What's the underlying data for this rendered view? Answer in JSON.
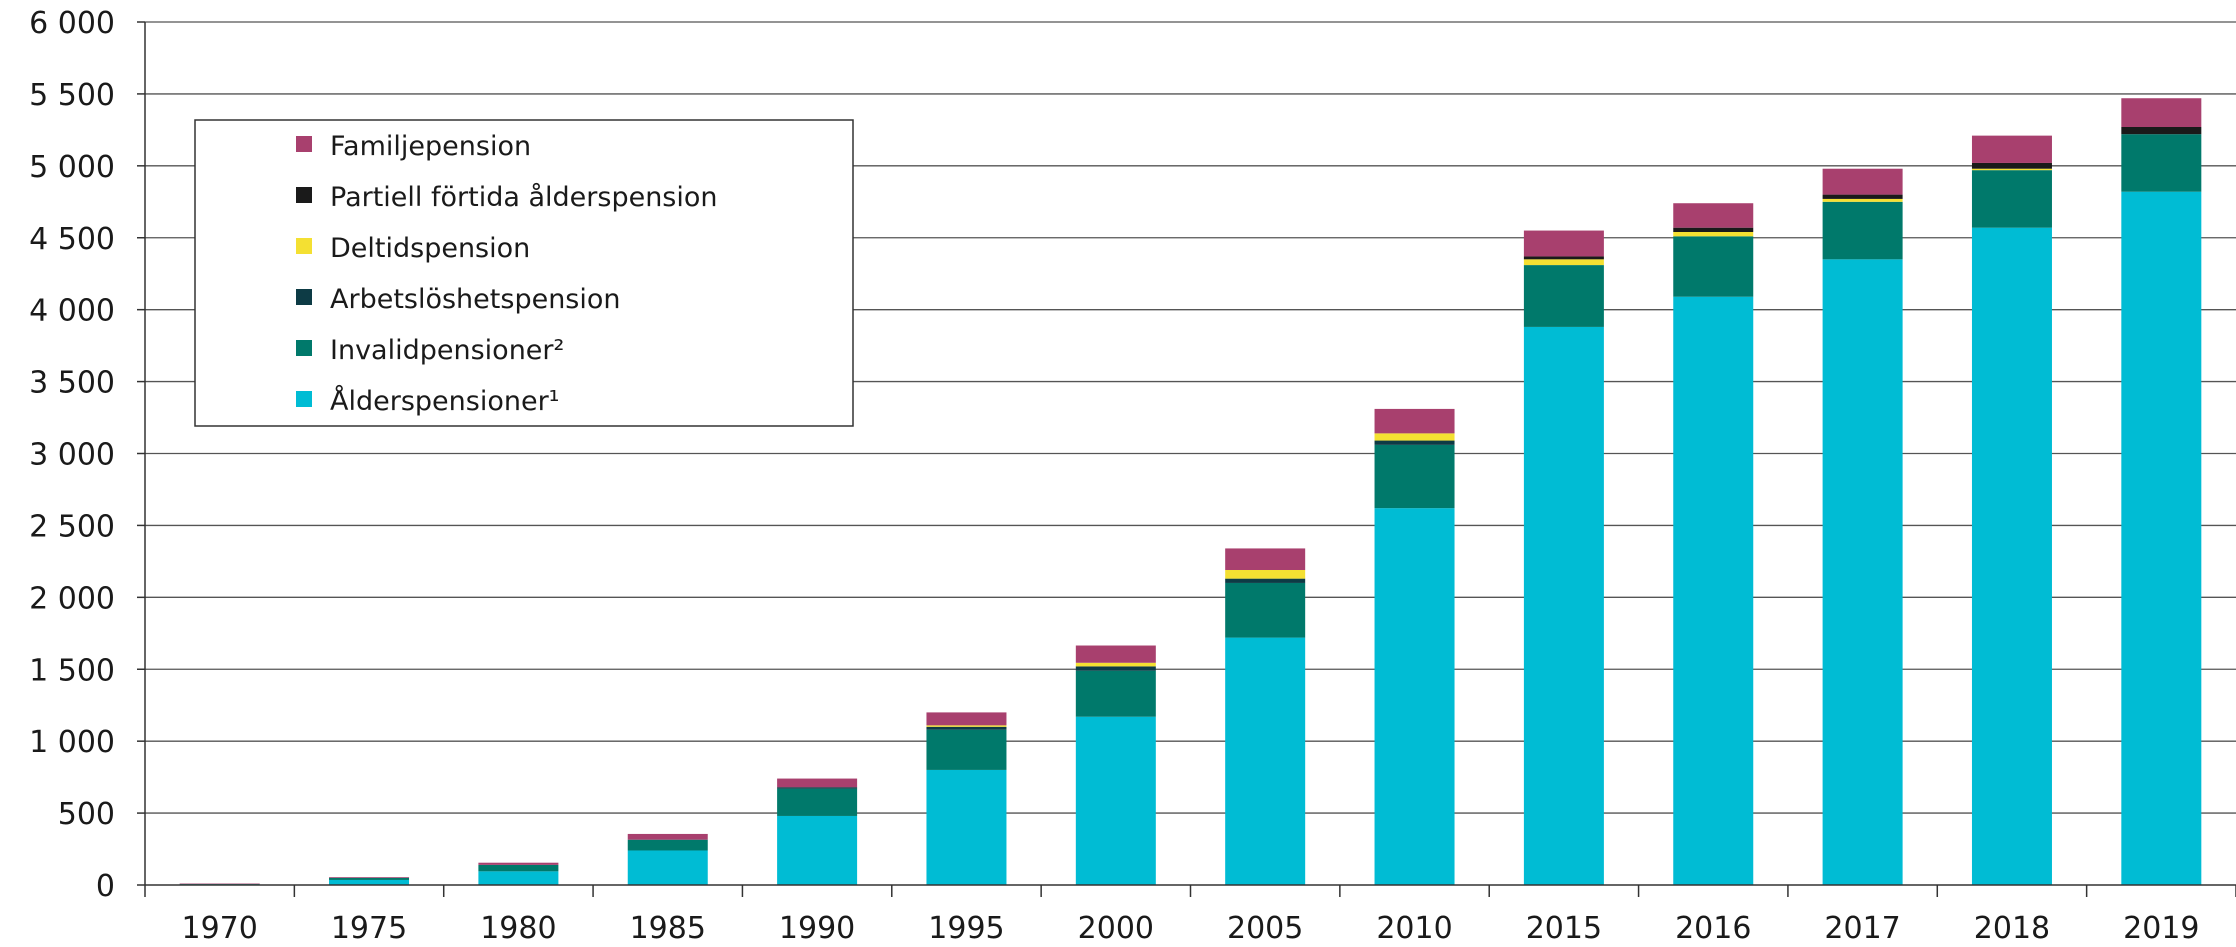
{
  "chart_data": {
    "type": "bar",
    "stacked": true,
    "categories": [
      "1970",
      "1975",
      "1980",
      "1985",
      "1990",
      "1995",
      "2000",
      "2005",
      "2010",
      "2015",
      "2016",
      "2017",
      "2018",
      "2019"
    ],
    "series": [
      {
        "name": "Ålderspensioner¹",
        "color": "#00BCD4",
        "values": [
          5,
          35,
          95,
          240,
          480,
          800,
          1170,
          1720,
          2620,
          3880,
          4090,
          4350,
          4570,
          4820
        ]
      },
      {
        "name": "Invalidpensioner²",
        "color": "#00796B",
        "values": [
          3,
          15,
          45,
          75,
          190,
          280,
          320,
          380,
          440,
          430,
          420,
          400,
          400,
          400
        ]
      },
      {
        "name": "Arbetslöshetspension",
        "color": "#0D3B45",
        "values": [
          0,
          0,
          0,
          0,
          10,
          20,
          30,
          30,
          30,
          0,
          0,
          0,
          0,
          0
        ]
      },
      {
        "name": "Deltidspension",
        "color": "#F4E032",
        "values": [
          0,
          0,
          0,
          0,
          0,
          10,
          25,
          60,
          50,
          40,
          30,
          20,
          10,
          0
        ]
      },
      {
        "name": "Partiell förtida ålderspension",
        "color": "#1A1A1A",
        "values": [
          0,
          0,
          0,
          0,
          0,
          0,
          0,
          0,
          0,
          20,
          30,
          30,
          40,
          50
        ]
      },
      {
        "name": "Familjepension",
        "color": "#A8406E",
        "values": [
          2,
          5,
          15,
          40,
          60,
          90,
          120,
          150,
          170,
          180,
          170,
          180,
          190,
          200
        ]
      }
    ],
    "ylim": [
      0,
      6000
    ],
    "yticks": [
      {
        "value": 0,
        "label": "0"
      },
      {
        "value": 500,
        "label": "500"
      },
      {
        "value": 1000,
        "label": "1 000"
      },
      {
        "value": 1500,
        "label": "1 500"
      },
      {
        "value": 2000,
        "label": "2 000"
      },
      {
        "value": 2500,
        "label": "2 500"
      },
      {
        "value": 3000,
        "label": "3 000"
      },
      {
        "value": 3500,
        "label": "3 500"
      },
      {
        "value": 4000,
        "label": "4 000"
      },
      {
        "value": 4500,
        "label": "4 500"
      },
      {
        "value": 5000,
        "label": "5 000"
      },
      {
        "value": 5500,
        "label": "5 500"
      },
      {
        "value": 6000,
        "label": "6 000"
      }
    ],
    "grid": true,
    "legend_position": "top-left",
    "legend_order": [
      "Familjepension",
      "Partiell förtida ålderspension",
      "Deltidspension",
      "Arbetslöshetspension",
      "Invalidpensioner²",
      "Ålderspensioner¹"
    ]
  }
}
